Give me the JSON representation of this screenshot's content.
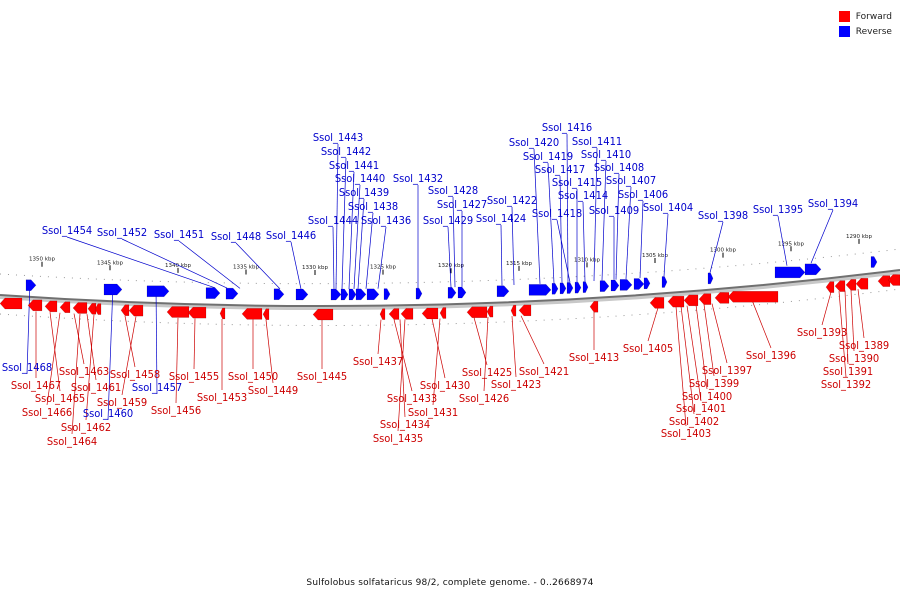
{
  "legend": {
    "forward_label": "Forward",
    "reverse_label": "Reverse",
    "forward_color": "#ff0000",
    "reverse_color": "#0000ff"
  },
  "caption": "Sulfolobus solfataricus 98/2, complete genome. - 0..2668974",
  "ticks": [
    "1350 kbp",
    "1345 kbp",
    "1340 kbp",
    "1335 kbp",
    "1330 kbp",
    "1325 kbp",
    "1320 kbp",
    "1315 kbp",
    "1310 kbp",
    "1305 kbp",
    "1300 kbp",
    "1295 kbp",
    "1290 kbp"
  ],
  "reverse_labels": [
    "Ssol_1443",
    "Ssol_1442",
    "Ssol_1441",
    "Ssol_1440",
    "Ssol_1439",
    "Ssol_1438",
    "Ssol_1436",
    "Ssol_1444",
    "Ssol_1432",
    "Ssol_1428",
    "Ssol_1427",
    "Ssol_1429",
    "Ssol_1422",
    "Ssol_1424",
    "Ssol_1416",
    "Ssol_1420",
    "Ssol_1411",
    "Ssol_1419",
    "Ssol_1410",
    "Ssol_1417",
    "Ssol_1408",
    "Ssol_1415",
    "Ssol_1407",
    "Ssol_1414",
    "Ssol_1406",
    "Ssol_1418",
    "Ssol_1409",
    "Ssol_1404",
    "Ssol_1398",
    "Ssol_1395",
    "Ssol_1394",
    "Ssol_1454",
    "Ssol_1452",
    "Ssol_1451",
    "Ssol_1448",
    "Ssol_1446",
    "Ssol_1468",
    "Ssol_1457",
    "Ssol_1460"
  ],
  "forward_labels": [
    "Ssol_1467",
    "Ssol_1465",
    "Ssol_1466",
    "Ssol_1463",
    "Ssol_1461",
    "Ssol_1462",
    "Ssol_1464",
    "Ssol_1458",
    "Ssol_1459",
    "Ssol_1456",
    "Ssol_1455",
    "Ssol_1453",
    "Ssol_1450",
    "Ssol_1449",
    "Ssol_1445",
    "Ssol_1437",
    "Ssol_1433",
    "Ssol_1434",
    "Ssol_1435",
    "Ssol_1430",
    "Ssol_1431",
    "Ssol_1425",
    "Ssol_1426",
    "Ssol_1423",
    "Ssol_1421",
    "Ssol_1413",
    "Ssol_1405",
    "Ssol_1397",
    "Ssol_1399",
    "Ssol_1400",
    "Ssol_1401",
    "Ssol_1402",
    "Ssol_1403",
    "Ssol_1396",
    "Ssol_1393",
    "Ssol_1389",
    "Ssol_1390",
    "Ssol_1391",
    "Ssol_1392"
  ]
}
